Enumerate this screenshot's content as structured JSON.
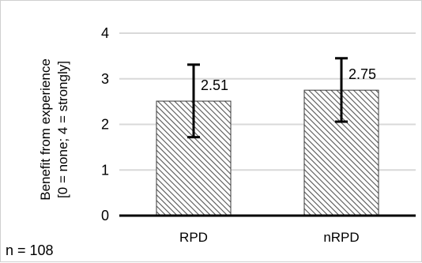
{
  "chart_data": {
    "type": "bar",
    "categories": [
      "RPD",
      "nRPD"
    ],
    "values": [
      2.51,
      2.75
    ],
    "error_low": [
      1.72,
      2.06
    ],
    "error_high": [
      3.31,
      3.45
    ],
    "data_labels": [
      "2.51",
      "2.75"
    ],
    "ylabel_lines": [
      "Benefit from experience",
      "[0 = none; 4 = strongly]"
    ],
    "ylim": [
      0,
      4
    ],
    "yticks": [
      "0",
      "1",
      "2",
      "3",
      "4"
    ],
    "grid": true,
    "bar_fill": "diagonal-hatch",
    "colors": {
      "bar_stroke": "#3a3a3a",
      "hatch": "#555555",
      "gridline": "#d9d9d9",
      "axis": "#000000",
      "error_bar": "#000000"
    },
    "annotation": "n = 108"
  }
}
